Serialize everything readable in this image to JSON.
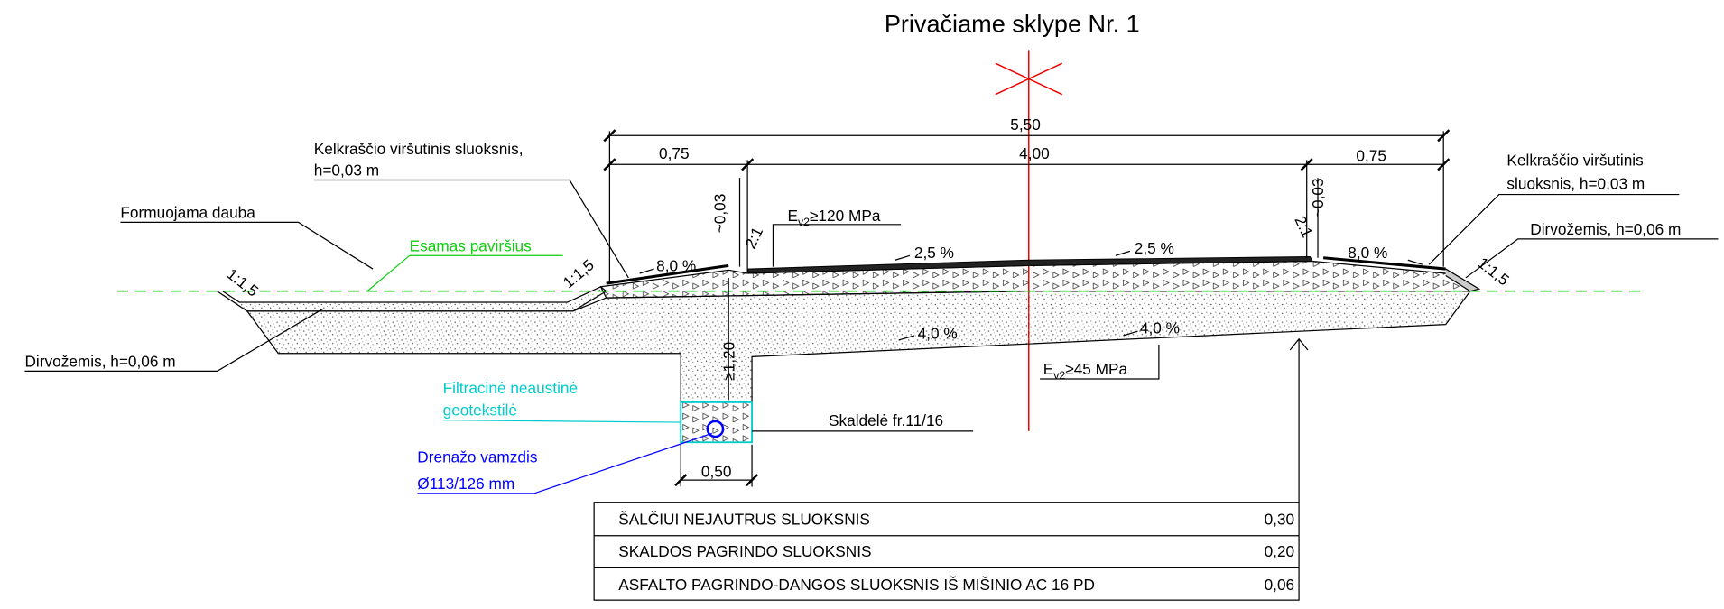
{
  "title": "Privačiame sklype Nr. 1",
  "dimensions": {
    "total": "5,50",
    "left_shoulder": "0,75",
    "carriageway": "4,00",
    "right_shoulder": "0,75",
    "trench_width": "0,50",
    "trench_depth": "≥1,20",
    "left_surface": "~0,03",
    "right_surface": "~0,03"
  },
  "slopes": {
    "left_ditch": "1:1,5",
    "left_inner": "1:1,5",
    "right_outer": "1:1,5",
    "left_edge": "2:1",
    "right_edge": "2:1",
    "left_shoulder": "8,0 %",
    "right_shoulder": "8,0 %",
    "left_lane": "2,5 %",
    "right_lane": "2,5 %",
    "left_base": "4,0 %",
    "right_base": "4,0 %"
  },
  "moduli": [
    {
      "symbol": "E",
      "subscript": "v2",
      "value": "≥120 MPa"
    },
    {
      "symbol": "E",
      "subscript": "v2",
      "value": "≥45 MPa"
    }
  ],
  "labels": {
    "left_shoulder_top": [
      "Kelkraščio viršutinis sluoksnis,",
      "h=0,03 m"
    ],
    "ditch": "Formuojama dauba",
    "existing_surface": "Esamas paviršius",
    "left_topsoil": "Dirvožemis, h=0,06 m",
    "geotextile": [
      "Filtracinė neaustinė",
      "geotekstilė"
    ],
    "drain_pipe": [
      "Drenažo vamzdis",
      "Ø113/126 mm"
    ],
    "gravel": "Skaldelė fr.11/16",
    "right_shoulder_top": [
      "Kelkraščio viršutinis",
      "sluoksnis, h=0,03 m"
    ],
    "right_topsoil": "Dirvožemis, h=0,06 m"
  },
  "table": {
    "rows": [
      [
        "ŠALČIUI NEJAUTRUS SLUOKSNIS",
        "0,30"
      ],
      [
        "SKALDOS PAGRINDO SLUOKSNIS",
        "0,20"
      ],
      [
        "ASFALTO PAGRINDO-DANGOS SLUOKSNIS IŠ MIŠINIO AC 16 PD",
        "0,06"
      ]
    ]
  }
}
